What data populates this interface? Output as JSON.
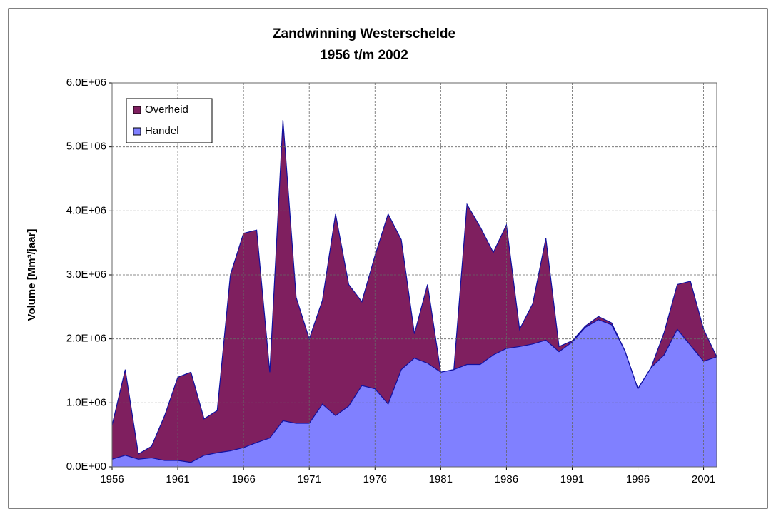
{
  "chart_data": {
    "type": "stacked_area",
    "title": "Zandwinning Westerschelde",
    "subtitle": "1956 t/m 2002",
    "y_label": "Volume [Mm³/jaar]",
    "x": [
      1956,
      1957,
      1958,
      1959,
      1960,
      1961,
      1962,
      1963,
      1964,
      1965,
      1966,
      1967,
      1968,
      1969,
      1970,
      1971,
      1972,
      1973,
      1974,
      1975,
      1976,
      1977,
      1978,
      1979,
      1980,
      1981,
      1982,
      1983,
      1984,
      1985,
      1986,
      1987,
      1988,
      1989,
      1990,
      1991,
      1992,
      1993,
      1994,
      1995,
      1996,
      1997,
      1998,
      1999,
      2000,
      2001,
      2002
    ],
    "series": [
      {
        "name": "Handel",
        "color": "#8080ff",
        "values": [
          120000,
          180000,
          120000,
          140000,
          100000,
          100000,
          70000,
          180000,
          220000,
          250000,
          300000,
          380000,
          450000,
          720000,
          680000,
          680000,
          980000,
          800000,
          950000,
          1270000,
          1220000,
          980000,
          1520000,
          1700000,
          1620000,
          1480000,
          1520000,
          1600000,
          1600000,
          1750000,
          1850000,
          1880000,
          1920000,
          1980000,
          1800000,
          1950000,
          2180000,
          2300000,
          2220000,
          1820000,
          1220000,
          1550000,
          1750000,
          2150000,
          1900000,
          1650000,
          1720000
        ]
      },
      {
        "name": "Overheid",
        "color": "#7f1f5f",
        "values": [
          530000,
          1340000,
          80000,
          180000,
          700000,
          1300000,
          1410000,
          570000,
          660000,
          2750000,
          3350000,
          3320000,
          1030000,
          4700000,
          1970000,
          1320000,
          1620000,
          3150000,
          1900000,
          1310000,
          2080000,
          2970000,
          2030000,
          380000,
          1230000,
          0,
          0,
          2500000,
          2150000,
          1600000,
          1930000,
          270000,
          630000,
          1590000,
          80000,
          20000,
          20000,
          50000,
          30000,
          0,
          0,
          0,
          350000,
          700000,
          1000000,
          500000,
          0
        ]
      }
    ],
    "xlim": [
      1956,
      2002
    ],
    "xticks": [
      1956,
      1961,
      1966,
      1971,
      1976,
      1981,
      1986,
      1991,
      1996,
      2001
    ],
    "ylim": [
      0,
      6000000
    ],
    "yticks": [
      {
        "value": 0,
        "label": "0.0E+00"
      },
      {
        "value": 1000000,
        "label": "1.0E+06"
      },
      {
        "value": 2000000,
        "label": "2.0E+06"
      },
      {
        "value": 3000000,
        "label": "3.0E+06"
      },
      {
        "value": 4000000,
        "label": "4.0E+06"
      },
      {
        "value": 5000000,
        "label": "5.0E+06"
      },
      {
        "value": 6000000,
        "label": "6.0E+06"
      }
    ],
    "grid": true,
    "legend": "upper left",
    "line_color": "#1010a0"
  }
}
